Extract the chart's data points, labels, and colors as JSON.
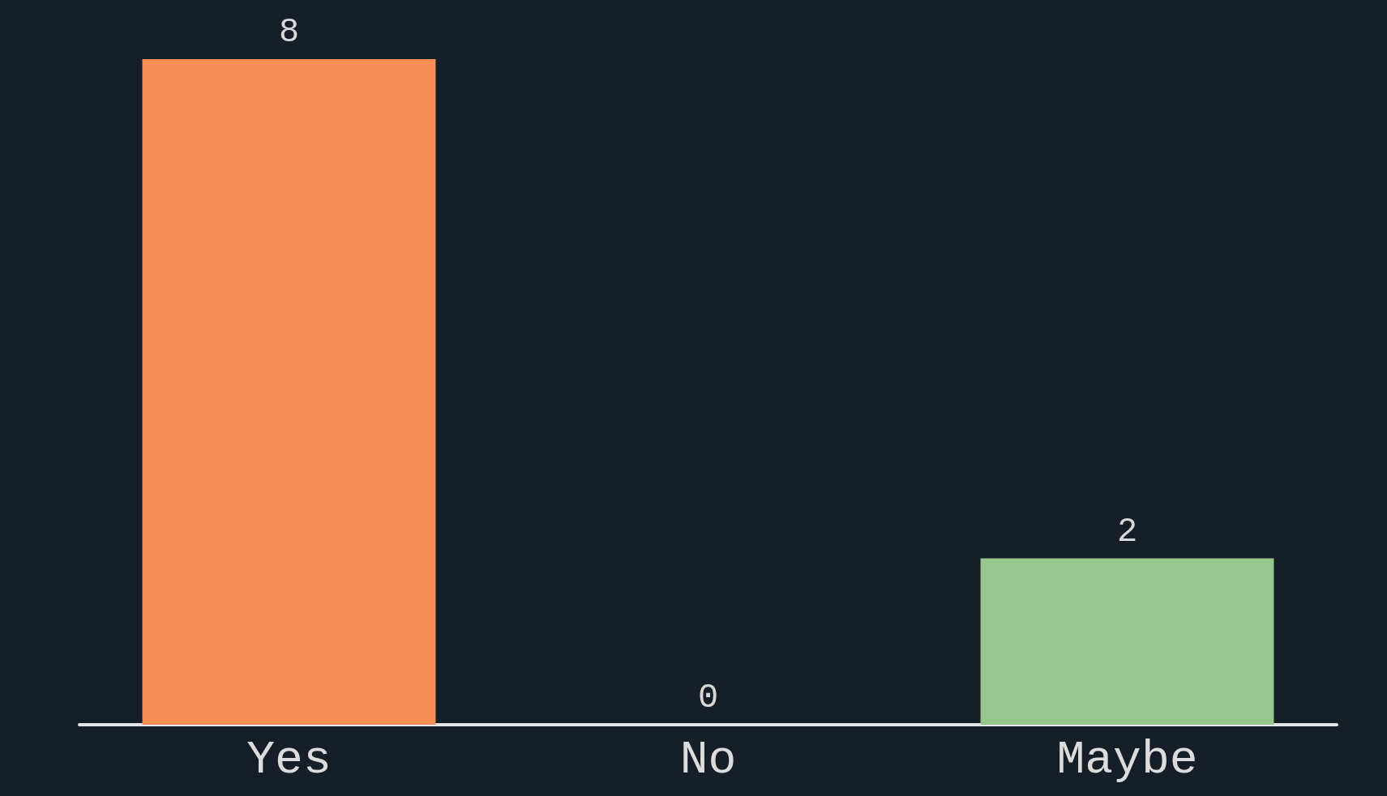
{
  "chart_data": {
    "type": "bar",
    "categories": [
      "Yes",
      "No",
      "Maybe"
    ],
    "values": [
      8,
      0,
      2
    ],
    "colors": [
      "#f78e55",
      null,
      "#98c68f"
    ],
    "data_labels": true,
    "grid": false
  }
}
